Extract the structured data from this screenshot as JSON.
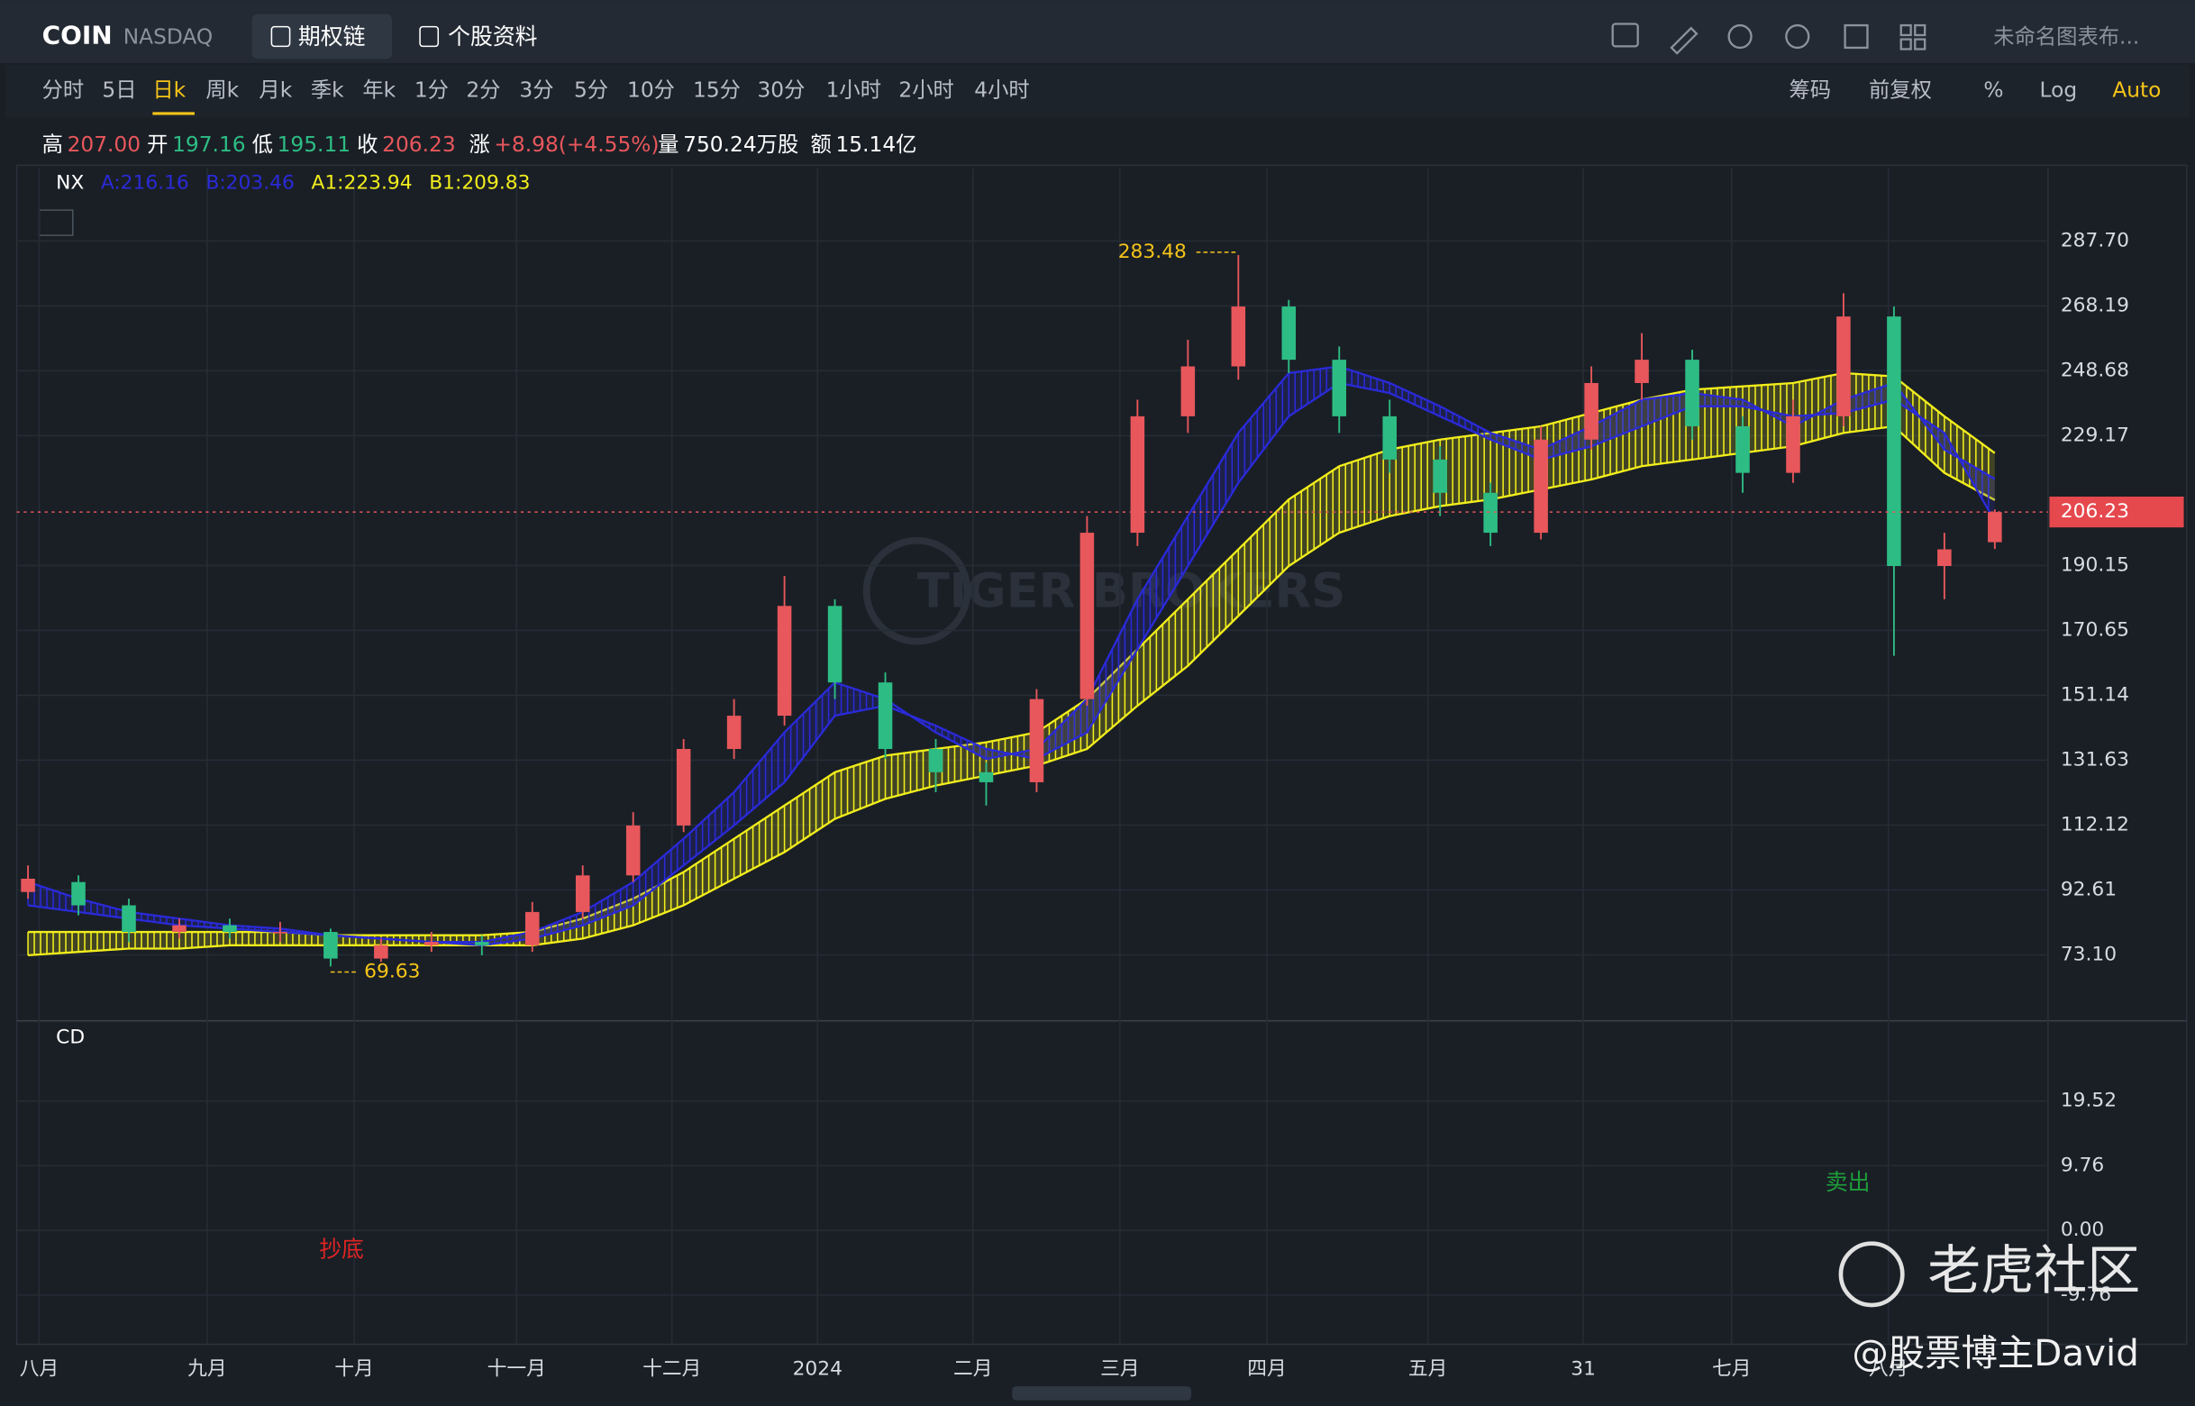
{
  "header": {
    "symbol": "COIN",
    "exchange": "NASDAQ",
    "tabs": [
      "期权链",
      "个股资料"
    ],
    "layout_name": "未命名图表布..."
  },
  "toolbar": {
    "periods": [
      "分时",
      "5日",
      "日k",
      "周k",
      "月k",
      "季k",
      "年k",
      "1分",
      "2分",
      "3分",
      "5分",
      "10分",
      "15分",
      "30分",
      "1小时",
      "2小时",
      "4小时"
    ],
    "options": [
      "筹码",
      "前复权",
      "%",
      "Log",
      "Auto"
    ]
  },
  "quote": {
    "labels": [
      "高",
      "开",
      "低",
      "收",
      "涨",
      "量",
      "额"
    ],
    "values": [
      "207.00",
      "197.16",
      "195.11",
      "206.23",
      "+8.98(+4.55%)",
      "750.24万股",
      "15.14亿"
    ]
  },
  "chart_data": [
    {
      "type": "candlestick",
      "indicator": "NX",
      "up_color": "#e8575b",
      "down_color": "#2dbd84",
      "open": [
        92,
        95,
        88,
        80,
        82,
        80,
        80,
        72,
        76,
        77,
        76,
        86,
        97,
        112,
        135,
        145,
        178,
        155,
        135,
        128,
        125,
        150,
        200,
        235,
        250,
        268,
        252,
        235,
        222,
        212,
        200,
        228,
        245,
        252,
        232,
        218,
        235,
        265,
        190,
        197.16
      ],
      "high": [
        100,
        97,
        90,
        84,
        84,
        83,
        81,
        78,
        80,
        79,
        89,
        100,
        116,
        138,
        150,
        187,
        180,
        158,
        138,
        131,
        153,
        205,
        240,
        258,
        283.48,
        270,
        256,
        240,
        226,
        215,
        232,
        250,
        260,
        255,
        235,
        240,
        272,
        268,
        200,
        207
      ],
      "low": [
        90,
        85,
        77,
        78,
        78,
        77,
        69.63,
        71,
        74,
        73,
        74,
        84,
        95,
        110,
        132,
        142,
        150,
        132,
        122,
        118,
        122,
        148,
        196,
        230,
        246,
        248,
        230,
        218,
        205,
        196,
        198,
        225,
        240,
        228,
        212,
        215,
        232,
        163,
        180,
        195.11
      ],
      "close": [
        96,
        88,
        80,
        82,
        80,
        80,
        72,
        76,
        77,
        76,
        86,
        97,
        112,
        135,
        145,
        178,
        155,
        135,
        128,
        125,
        150,
        200,
        235,
        250,
        268,
        252,
        235,
        222,
        212,
        200,
        228,
        245,
        252,
        232,
        218,
        235,
        265,
        190,
        195,
        206.23
      ],
      "series": [
        {
          "name": "A:216.16",
          "color": "#2a2ad8",
          "values": [
            95,
            90,
            86,
            84,
            82,
            81,
            79,
            78,
            77,
            77,
            80,
            86,
            95,
            108,
            122,
            140,
            155,
            150,
            140,
            132,
            135,
            150,
            180,
            205,
            230,
            248,
            250,
            245,
            238,
            230,
            225,
            232,
            240,
            242,
            240,
            232,
            240,
            245,
            225,
            216.16
          ]
        },
        {
          "name": "B:203.46",
          "color": "#2a2ad8",
          "values": [
            88,
            86,
            84,
            82,
            81,
            80,
            79,
            78,
            77,
            76,
            78,
            82,
            88,
            100,
            112,
            125,
            145,
            148,
            142,
            135,
            132,
            140,
            165,
            190,
            215,
            235,
            245,
            242,
            235,
            228,
            222,
            226,
            232,
            238,
            238,
            235,
            236,
            240,
            230,
            203.46
          ]
        },
        {
          "name": "A1:223.94",
          "color": "#f2ee1c",
          "values": [
            80,
            80,
            80,
            80,
            80,
            80,
            79,
            79,
            79,
            79,
            80,
            84,
            90,
            98,
            108,
            118,
            128,
            133,
            135,
            137,
            140,
            150,
            165,
            180,
            195,
            210,
            220,
            225,
            228,
            230,
            232,
            236,
            240,
            243,
            244,
            245,
            248,
            247,
            235,
            223.94
          ]
        },
        {
          "name": "B1:209.83",
          "color": "#f2ee1c",
          "values": [
            73,
            74,
            75,
            75,
            76,
            76,
            76,
            76,
            76,
            76,
            76,
            78,
            82,
            88,
            96,
            104,
            114,
            120,
            124,
            127,
            130,
            135,
            148,
            160,
            175,
            190,
            200,
            205,
            208,
            210,
            213,
            216,
            220,
            222,
            224,
            226,
            230,
            232,
            218,
            209.83
          ]
        }
      ],
      "ylim": [
        53.7,
        309.6
      ],
      "yticks": [
        {
          "value": 73.1,
          "label": "73.10"
        },
        92.61,
        112.12,
        131.63,
        151.14,
        170.65,
        190.15,
        229.17,
        248.68,
        268.19,
        {
          "value": 287.7,
          "label": "287.70"
        }
      ],
      "xlabels": [
        "八月",
        "九月",
        "十月",
        "十一月",
        "十二月",
        "2024",
        "二月",
        "三月",
        "四月",
        "五月",
        "31",
        "七月",
        "八月"
      ],
      "grid": true
    },
    {
      "type": "indicator",
      "indicator": "CD",
      "ylim": [
        -17.6,
        31.4
      ],
      "yticks": [
        19.52,
        9.76,
        {
          "value": 0,
          "label": "0.00"
        },
        -9.76
      ],
      "annotations": [
        "抄底",
        "卖出"
      ],
      "grid": true
    }
  ],
  "watermark": {
    "brand": "TIGER BROKERS",
    "community": "老虎社区",
    "author": "@股票博主David"
  }
}
